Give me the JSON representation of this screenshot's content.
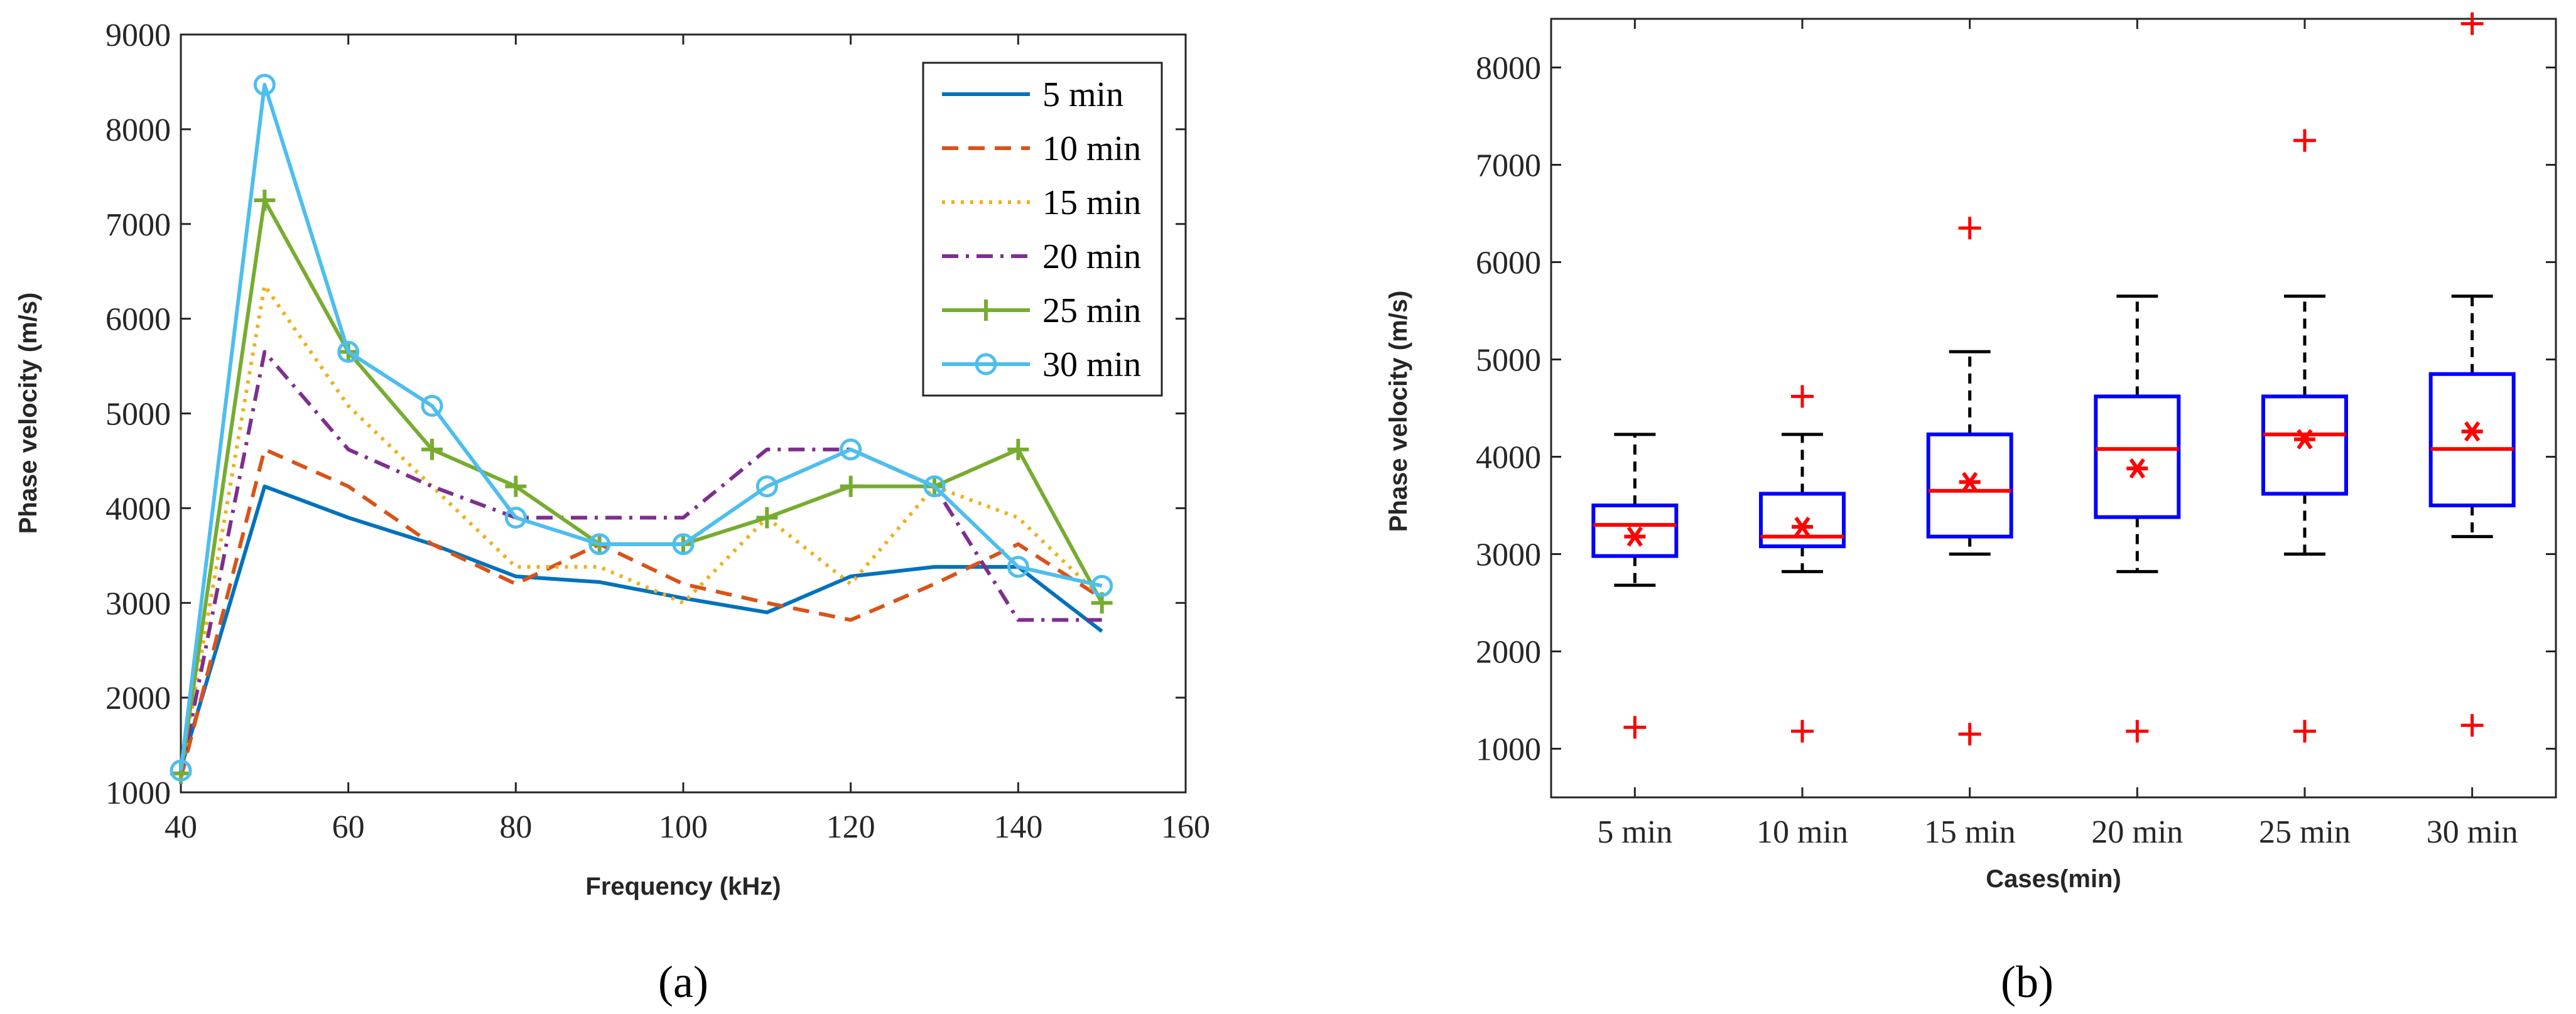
{
  "chart_data": [
    {
      "type": "line",
      "panel_label": "a",
      "title": "",
      "xlabel": "Frequency (kHz)",
      "ylabel": "Phase velocity (m/s)",
      "xlim": [
        40,
        160
      ],
      "ylim": [
        1000,
        9000
      ],
      "xticks": [
        40,
        60,
        80,
        100,
        120,
        140,
        160
      ],
      "yticks": [
        1000,
        2000,
        3000,
        4000,
        5000,
        6000,
        7000,
        8000,
        9000
      ],
      "legend_position": "top-right",
      "x": [
        40,
        50,
        60,
        70,
        80,
        90,
        100,
        110,
        120,
        130,
        140,
        150
      ],
      "series": [
        {
          "name": "5 min",
          "color": "#0072BD",
          "style": "solid",
          "marker": "none",
          "values": [
            1250,
            4230,
            3900,
            3620,
            3280,
            3220,
            3050,
            2900,
            3280,
            3380,
            3380,
            2700
          ]
        },
        {
          "name": "10 min",
          "color": "#D95319",
          "style": "dashed",
          "marker": "none",
          "values": [
            1150,
            4620,
            4230,
            3620,
            3200,
            3620,
            3200,
            3000,
            2820,
            3200,
            3620,
            3050
          ]
        },
        {
          "name": "15 min",
          "color": "#EDB120",
          "style": "dotted",
          "marker": "none",
          "values": [
            1200,
            6350,
            5080,
            4230,
            3380,
            3380,
            3000,
            3900,
            3200,
            4230,
            3900,
            3050
          ]
        },
        {
          "name": "20 min",
          "color": "#7E2F8E",
          "style": "dashdot",
          "marker": "none",
          "values": [
            1200,
            5650,
            4620,
            4230,
            3900,
            3900,
            3900,
            4620,
            4620,
            4230,
            2820,
            2820
          ]
        },
        {
          "name": "25 min",
          "color": "#77AC30",
          "style": "solid",
          "marker": "plus",
          "values": [
            1200,
            7250,
            5650,
            4620,
            4230,
            3620,
            3620,
            3900,
            4230,
            4230,
            4620,
            3000
          ]
        },
        {
          "name": "30 min",
          "color": "#4DBEEE",
          "style": "solid",
          "marker": "circle",
          "values": [
            1230,
            8470,
            5650,
            5080,
            3900,
            3620,
            3620,
            4230,
            4620,
            4230,
            3380,
            3180
          ]
        }
      ]
    },
    {
      "type": "box",
      "panel_label": "b",
      "title": "",
      "xlabel": "Cases(min)",
      "ylabel": "Phase velocity (m/s)",
      "ylim": [
        500,
        8500
      ],
      "yticks": [
        1000,
        2000,
        3000,
        4000,
        5000,
        6000,
        7000,
        8000
      ],
      "categories": [
        "5 min",
        "10 min",
        "15 min",
        "20 min",
        "25 min",
        "30 min"
      ],
      "box_color": "#0000FF",
      "median_color": "#FF0000",
      "whisker_color": "#000000",
      "outlier_color": "#FF0000",
      "mean_color": "#FF0000",
      "boxes": [
        {
          "whisker_low": 2680,
          "q1": 2980,
          "median": 3300,
          "q3": 3500,
          "whisker_high": 4230,
          "mean": 3180,
          "outliers": [
            1220
          ]
        },
        {
          "whisker_low": 2820,
          "q1": 3080,
          "median": 3180,
          "q3": 3620,
          "whisker_high": 4230,
          "mean": 3280,
          "outliers": [
            4620,
            1180
          ]
        },
        {
          "whisker_low": 3000,
          "q1": 3180,
          "median": 3650,
          "q3": 4230,
          "whisker_high": 5080,
          "mean": 3740,
          "outliers": [
            6350,
            1150
          ]
        },
        {
          "whisker_low": 2820,
          "q1": 3380,
          "median": 4080,
          "q3": 4620,
          "whisker_high": 5650,
          "mean": 3880,
          "outliers": [
            1180
          ]
        },
        {
          "whisker_low": 3000,
          "q1": 3620,
          "median": 4230,
          "q3": 4620,
          "whisker_high": 5650,
          "mean": 4180,
          "outliers": [
            7250,
            1180
          ]
        },
        {
          "whisker_low": 3180,
          "q1": 3500,
          "median": 4080,
          "q3": 4850,
          "whisker_high": 5650,
          "mean": 4260,
          "outliers": [
            8450,
            1240
          ]
        }
      ]
    }
  ],
  "captions": [
    "(a)",
    "(b)"
  ]
}
